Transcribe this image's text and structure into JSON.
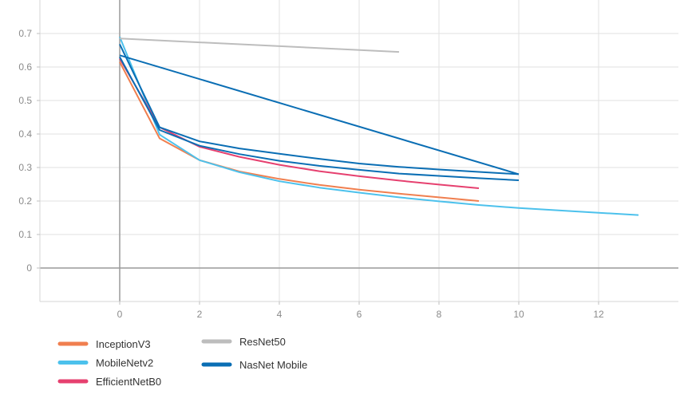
{
  "chart_data": {
    "type": "line",
    "title": "",
    "xlabel": "",
    "ylabel": "",
    "xlim": [
      -2,
      14
    ],
    "ylim": [
      -0.1,
      0.8
    ],
    "x_ticks": [
      0,
      2,
      4,
      6,
      8,
      10,
      12
    ],
    "y_ticks": [
      0,
      0.1,
      0.2,
      0.3,
      0.4,
      0.5,
      0.6,
      0.7
    ],
    "x_tick_labels": [
      "0",
      "2",
      "4",
      "6",
      "8",
      "10",
      "12"
    ],
    "y_tick_labels": [
      "0",
      "0.1",
      "0.2",
      "0.3",
      "0.4",
      "0.5",
      "0.6",
      "0.7"
    ],
    "grid": true,
    "legend_position": "bottom-left",
    "series": [
      {
        "name": "InceptionV3",
        "color": "#f07f4f",
        "points": [
          [
            0,
            0.615
          ],
          [
            1,
            0.387
          ],
          [
            2,
            0.322
          ],
          [
            3,
            0.288
          ],
          [
            4,
            0.266
          ],
          [
            5,
            0.248
          ],
          [
            6,
            0.234
          ],
          [
            7,
            0.222
          ],
          [
            8,
            0.211
          ],
          [
            9,
            0.2
          ]
        ]
      },
      {
        "name": "MobileNetv2",
        "color": "#4cc1ec",
        "points": [
          [
            0,
            0.69
          ],
          [
            1,
            0.398
          ],
          [
            2,
            0.322
          ],
          [
            3,
            0.286
          ],
          [
            4,
            0.259
          ],
          [
            5,
            0.24
          ],
          [
            6,
            0.225
          ],
          [
            7,
            0.211
          ],
          [
            8,
            0.199
          ],
          [
            9,
            0.188
          ],
          [
            10,
            0.179
          ],
          [
            11,
            0.172
          ],
          [
            12,
            0.165
          ],
          [
            13,
            0.158
          ]
        ]
      },
      {
        "name": "EfficientNetB0",
        "color": "#e6406f",
        "points": [
          [
            0,
            0.625
          ],
          [
            1,
            0.42
          ],
          [
            2,
            0.362
          ],
          [
            3,
            0.332
          ],
          [
            4,
            0.308
          ],
          [
            5,
            0.289
          ],
          [
            6,
            0.274
          ],
          [
            7,
            0.261
          ],
          [
            8,
            0.249
          ],
          [
            9,
            0.238
          ]
        ]
      },
      {
        "name": "ResNet50",
        "color": "#bdbdbd",
        "points": [
          [
            0,
            0.685
          ],
          [
            7,
            0.645
          ]
        ]
      },
      {
        "name": "NasNet Mobile",
        "color": "#0a6eb4",
        "points": [
          [
            0,
            0.635
          ],
          [
            10,
            0.28
          ]
        ]
      },
      {
        "name": "",
        "color": "#0a6eb4",
        "points": [
          [
            0,
            0.668
          ],
          [
            1,
            0.42
          ],
          [
            2,
            0.378
          ],
          [
            3,
            0.357
          ],
          [
            4,
            0.341
          ],
          [
            5,
            0.326
          ],
          [
            6,
            0.312
          ],
          [
            7,
            0.302
          ],
          [
            8,
            0.294
          ],
          [
            9,
            0.287
          ],
          [
            10,
            0.28
          ]
        ]
      },
      {
        "name": "",
        "color": "#0a6eb4",
        "points": [
          [
            0,
            0.63
          ],
          [
            1,
            0.412
          ],
          [
            2,
            0.365
          ],
          [
            3,
            0.34
          ],
          [
            4,
            0.32
          ],
          [
            5,
            0.305
          ],
          [
            6,
            0.293
          ],
          [
            7,
            0.282
          ],
          [
            8,
            0.275
          ],
          [
            9,
            0.268
          ],
          [
            10,
            0.262
          ]
        ]
      }
    ],
    "legend": [
      {
        "label": "InceptionV3",
        "color": "#f07f4f",
        "column": 0,
        "row": 0
      },
      {
        "label": "MobileNetv2",
        "color": "#4cc1ec",
        "column": 0,
        "row": 1
      },
      {
        "label": "EfficientNetB0",
        "color": "#e6406f",
        "column": 0,
        "row": 2
      },
      {
        "label": "ResNet50",
        "color": "#bdbdbd",
        "column": 1,
        "row": 0
      },
      {
        "label": "NasNet Mobile",
        "color": "#0a6eb4",
        "column": 1,
        "row": 1
      }
    ]
  }
}
